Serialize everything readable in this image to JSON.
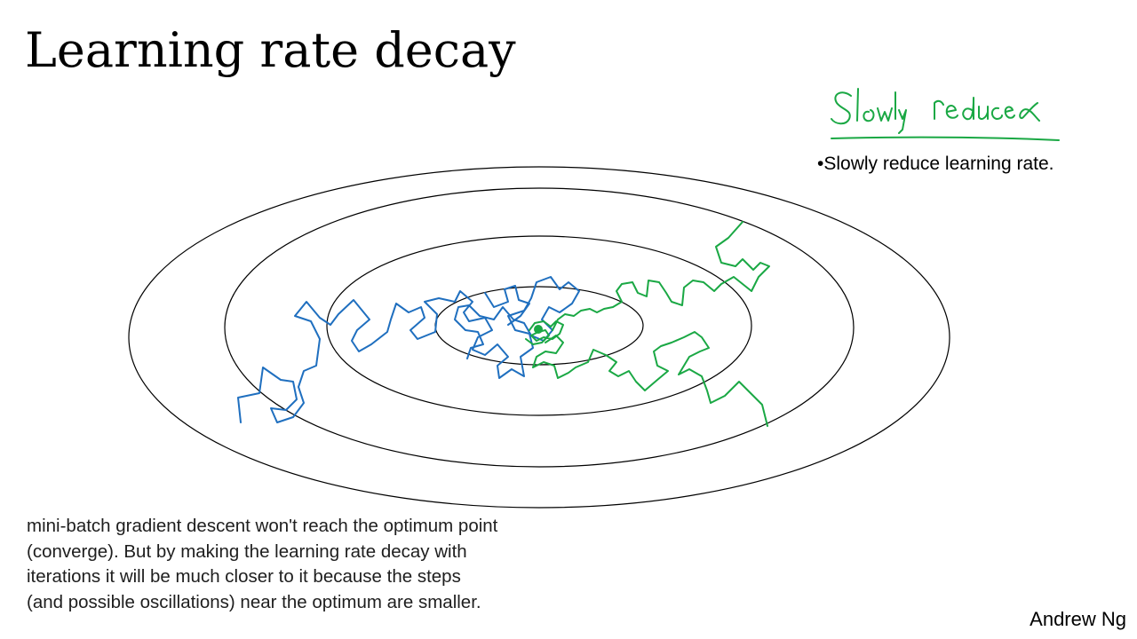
{
  "slide": {
    "title": "Learning rate decay",
    "bullet": "•Slowly reduce learning rate.",
    "handwritten_note": "Slowly reduce α",
    "note_lines": [
      "mini-batch gradient descent won't reach the optimum point",
      "(converge). But by making the learning rate decay with",
      "iterations it will be much closer to it because the steps",
      "(and possible oscillations) near the optimum are smaller."
    ],
    "author": "Andrew Ng"
  },
  "colors": {
    "contour": "#000000",
    "path_constant_rate": "#1f6fbf",
    "path_decaying_rate": "#1aa844",
    "handwriting": "#1aa844"
  }
}
